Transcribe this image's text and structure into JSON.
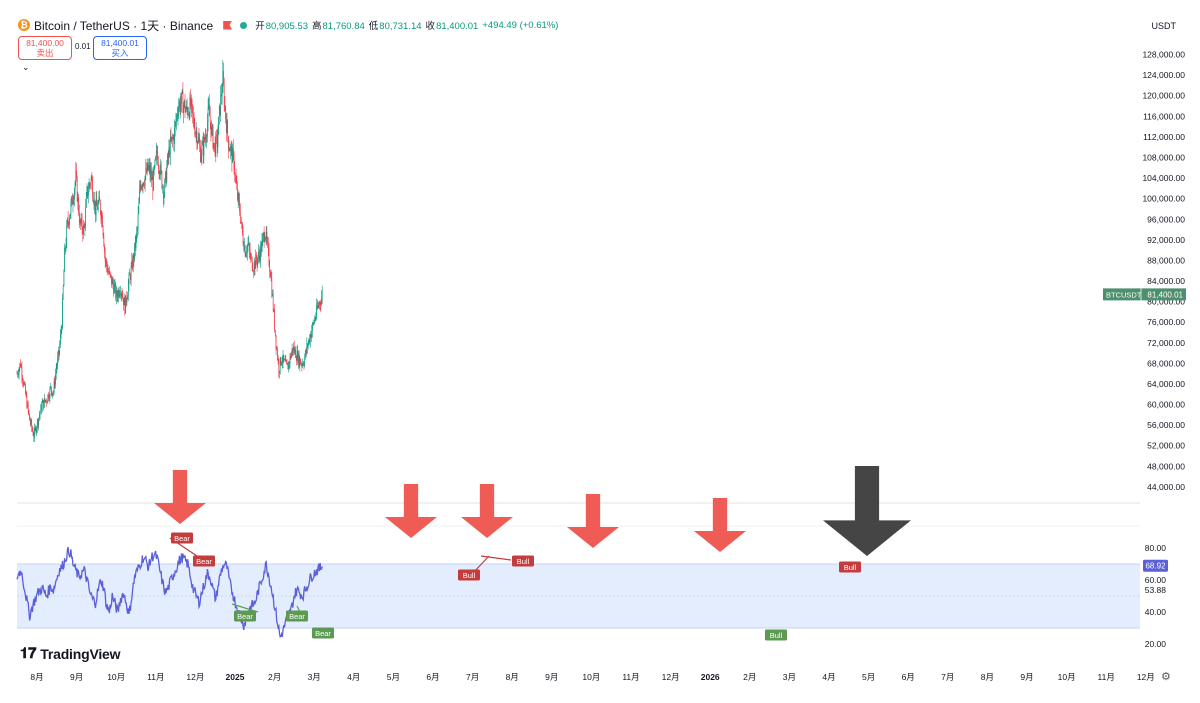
{
  "header": {
    "title": "Bitcoin / TetherUS · 1天 · Binance",
    "coin_icon": "bitcoin-icon",
    "open_label": "开",
    "open": "80,905.53",
    "high_label": "高",
    "high": "81,760.84",
    "low_label": "低",
    "low": "80,731.14",
    "close_label": "收",
    "close": "81,400.01",
    "change": "+494.49 (+0.61%)"
  },
  "trade": {
    "sell_price": "81,400.00",
    "sell_label": "卖出",
    "spread": "0.01",
    "buy_price": "81,400.01",
    "buy_label": "买入"
  },
  "currency": "USDT",
  "branding": "TradingView",
  "colors": {
    "up": "#089981",
    "down": "#f23645",
    "rsi": "#5b5fd8",
    "rsi_band": "#e3edfd",
    "arrow": "#ef5b55",
    "arrow_final": "#454545",
    "bear": "#c43d3d",
    "bull": "#5c9a52",
    "price_tag": "#4e8f6f"
  },
  "chart_data": [
    {
      "type": "candlestick",
      "symbol": "BTCUSDT",
      "last_price": "81,400.01",
      "y_ticks": [
        "128,000.00",
        "124,000.00",
        "120,000.00",
        "116,000.00",
        "112,000.00",
        "108,000.00",
        "104,000.00",
        "100,000.00",
        "96,000.00",
        "92,000.00",
        "88,000.00",
        "84,000.00",
        "80,000.00",
        "76,000.00",
        "72,000.00",
        "68,000.00",
        "64,000.00",
        "60,000.00",
        "56,000.00",
        "52,000.00",
        "48,000.00",
        "44,000.00"
      ],
      "ylim": [
        43000,
        128500
      ],
      "x_ticks": [
        "8月",
        "9月",
        "10月",
        "11月",
        "12月",
        "2025",
        "2月",
        "3月",
        "4月",
        "5月",
        "6月",
        "7月",
        "8月",
        "9月",
        "10月",
        "11月",
        "12月",
        "2026",
        "2月",
        "3月",
        "4月",
        "5月",
        "6月",
        "7月",
        "8月",
        "9月",
        "10月",
        "11月",
        "12月"
      ],
      "price_path": [
        [
          0,
          66000
        ],
        [
          5,
          68000
        ],
        [
          12,
          62000
        ],
        [
          18,
          57000
        ],
        [
          24,
          54000
        ],
        [
          30,
          57000
        ],
        [
          36,
          60000
        ],
        [
          42,
          61000
        ],
        [
          48,
          63000
        ],
        [
          52,
          62500
        ],
        [
          56,
          67000
        ],
        [
          60,
          70000
        ],
        [
          64,
          76000
        ],
        [
          68,
          89000
        ],
        [
          72,
          95000
        ],
        [
          78,
          99000
        ],
        [
          84,
          104000
        ],
        [
          90,
          95000
        ],
        [
          96,
          94000
        ],
        [
          100,
          101000
        ],
        [
          106,
          104000
        ],
        [
          112,
          98000
        ],
        [
          118,
          99000
        ],
        [
          122,
          96000
        ],
        [
          126,
          88000
        ],
        [
          132,
          85000
        ],
        [
          138,
          83000
        ],
        [
          142,
          81000
        ],
        [
          148,
          83000
        ],
        [
          154,
          79000
        ],
        [
          160,
          84000
        ],
        [
          166,
          88000
        ],
        [
          172,
          94000
        ],
        [
          176,
          103000
        ],
        [
          182,
          104000
        ],
        [
          188,
          106000
        ],
        [
          194,
          103000
        ],
        [
          200,
          109000
        ],
        [
          204,
          106000
        ],
        [
          210,
          101000
        ],
        [
          214,
          106000
        ],
        [
          218,
          110000
        ],
        [
          224,
          112000
        ],
        [
          230,
          118000
        ],
        [
          236,
          119000
        ],
        [
          242,
          117000
        ],
        [
          248,
          118000
        ],
        [
          252,
          115000
        ],
        [
          258,
          112000
        ],
        [
          262,
          109000
        ],
        [
          266,
          110000
        ],
        [
          270,
          113000
        ],
        [
          274,
          117000
        ],
        [
          278,
          113000
        ],
        [
          282,
          110000
        ],
        [
          286,
          111000
        ],
        [
          290,
          118000
        ],
        [
          294,
          123000
        ],
        [
          298,
          116000
        ],
        [
          302,
          111000
        ],
        [
          306,
          109000
        ],
        [
          310,
          107000
        ],
        [
          314,
          101000
        ],
        [
          318,
          98000
        ],
        [
          322,
          93000
        ],
        [
          326,
          90000
        ],
        [
          330,
          91000
        ],
        [
          334,
          88000
        ],
        [
          338,
          87000
        ],
        [
          342,
          88000
        ],
        [
          346,
          89000
        ],
        [
          350,
          91000
        ],
        [
          354,
          94000
        ],
        [
          358,
          90000
        ],
        [
          362,
          86000
        ],
        [
          366,
          79000
        ],
        [
          370,
          72000
        ],
        [
          374,
          67000
        ],
        [
          378,
          69000
        ],
        [
          382,
          68000
        ],
        [
          386,
          67000
        ],
        [
          390,
          69000
        ],
        [
          394,
          71000
        ],
        [
          398,
          70000
        ],
        [
          402,
          69000
        ],
        [
          406,
          68000
        ],
        [
          410,
          68500
        ],
        [
          414,
          71000
        ],
        [
          418,
          73000
        ],
        [
          422,
          75000
        ],
        [
          426,
          77000
        ],
        [
          430,
          79000
        ],
        [
          434,
          80500
        ],
        [
          436,
          81400
        ]
      ],
      "annotations": [
        "Bear",
        "Bear",
        "Bear",
        "Bear",
        "Bear"
      ]
    },
    {
      "type": "line",
      "indicator": "RSI",
      "last_value": "68.92",
      "ma_value": "53.88",
      "y_ticks": [
        "80.00",
        "60.00",
        "40.00",
        "20.00"
      ],
      "ylim": [
        15,
        85
      ],
      "band": [
        30,
        70
      ],
      "rsi_path": [
        [
          0,
          62
        ],
        [
          6,
          66
        ],
        [
          12,
          52
        ],
        [
          18,
          38
        ],
        [
          24,
          46
        ],
        [
          30,
          52
        ],
        [
          36,
          55
        ],
        [
          42,
          50
        ],
        [
          48,
          56
        ],
        [
          52,
          54
        ],
        [
          56,
          60
        ],
        [
          60,
          66
        ],
        [
          64,
          68
        ],
        [
          68,
          72
        ],
        [
          72,
          77
        ],
        [
          76,
          78
        ],
        [
          80,
          70
        ],
        [
          84,
          66
        ],
        [
          88,
          62
        ],
        [
          92,
          64
        ],
        [
          96,
          66
        ],
        [
          100,
          60
        ],
        [
          104,
          52
        ],
        [
          108,
          48
        ],
        [
          112,
          46
        ],
        [
          116,
          54
        ],
        [
          120,
          60
        ],
        [
          124,
          55
        ],
        [
          128,
          44
        ],
        [
          132,
          40
        ],
        [
          136,
          50
        ],
        [
          140,
          45
        ],
        [
          144,
          40
        ],
        [
          148,
          48
        ],
        [
          152,
          52
        ],
        [
          156,
          46
        ],
        [
          160,
          38
        ],
        [
          164,
          50
        ],
        [
          168,
          62
        ],
        [
          172,
          66
        ],
        [
          176,
          70
        ],
        [
          180,
          74
        ],
        [
          184,
          72
        ],
        [
          188,
          68
        ],
        [
          192,
          74
        ],
        [
          196,
          76
        ],
        [
          200,
          74
        ],
        [
          204,
          66
        ],
        [
          208,
          58
        ],
        [
          212,
          52
        ],
        [
          216,
          55
        ],
        [
          220,
          60
        ],
        [
          224,
          64
        ],
        [
          228,
          68
        ],
        [
          232,
          72
        ],
        [
          236,
          74
        ],
        [
          240,
          72
        ],
        [
          244,
          70
        ],
        [
          248,
          62
        ],
        [
          252,
          54
        ],
        [
          256,
          50
        ],
        [
          260,
          46
        ],
        [
          264,
          52
        ],
        [
          268,
          58
        ],
        [
          272,
          64
        ],
        [
          276,
          62
        ],
        [
          280,
          54
        ],
        [
          284,
          48
        ],
        [
          288,
          58
        ],
        [
          292,
          66
        ],
        [
          296,
          70
        ],
        [
          300,
          68
        ],
        [
          304,
          58
        ],
        [
          308,
          52
        ],
        [
          312,
          46
        ],
        [
          316,
          40
        ],
        [
          320,
          36
        ],
        [
          324,
          32
        ],
        [
          328,
          36
        ],
        [
          332,
          42
        ],
        [
          336,
          44
        ],
        [
          340,
          46
        ],
        [
          344,
          52
        ],
        [
          348,
          58
        ],
        [
          352,
          64
        ],
        [
          356,
          70
        ],
        [
          360,
          62
        ],
        [
          364,
          54
        ],
        [
          368,
          44
        ],
        [
          372,
          34
        ],
        [
          376,
          24
        ],
        [
          380,
          28
        ],
        [
          384,
          34
        ],
        [
          388,
          38
        ],
        [
          392,
          42
        ],
        [
          396,
          50
        ],
        [
          400,
          54
        ],
        [
          404,
          52
        ],
        [
          408,
          50
        ],
        [
          412,
          54
        ],
        [
          416,
          58
        ],
        [
          420,
          62
        ],
        [
          424,
          64
        ],
        [
          428,
          66
        ],
        [
          432,
          67
        ],
        [
          436,
          68.92
        ]
      ],
      "labels": [
        "Bear",
        "Bear",
        "Bull",
        "Bull",
        "Bull",
        "Bear",
        "Bear",
        "Bear",
        "Bull"
      ]
    }
  ]
}
